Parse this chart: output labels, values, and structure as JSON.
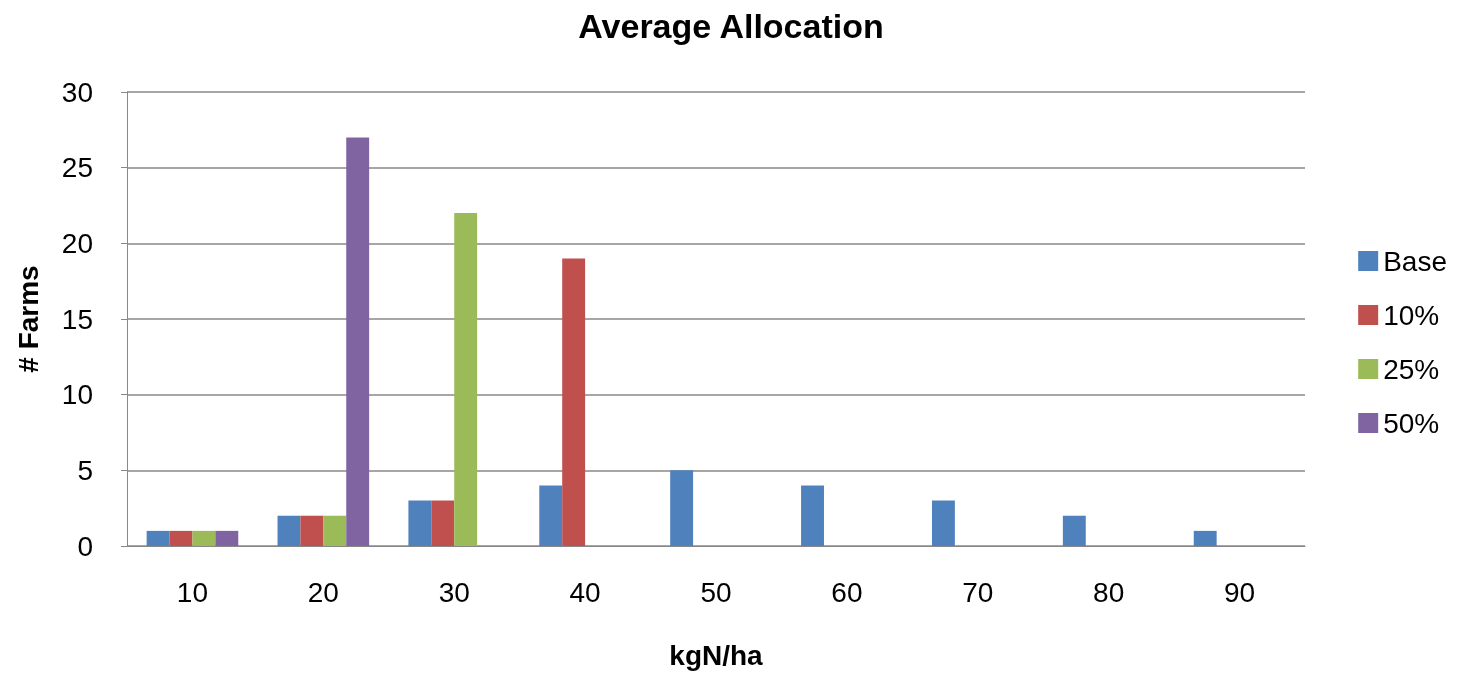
{
  "chart_data": {
    "type": "bar",
    "title": "Average Allocation",
    "xlabel": "kgN/ha",
    "ylabel": "# Farms",
    "categories": [
      "10",
      "20",
      "30",
      "40",
      "50",
      "60",
      "70",
      "80",
      "90"
    ],
    "series": [
      {
        "name": "Base",
        "color": "#4f81bd",
        "values": [
          1,
          2,
          3,
          4,
          5,
          4,
          3,
          2,
          1
        ]
      },
      {
        "name": "10%",
        "color": "#c0504d",
        "values": [
          1,
          2,
          3,
          19,
          0,
          0,
          0,
          0,
          0
        ]
      },
      {
        "name": "25%",
        "color": "#9bbb59",
        "values": [
          1,
          2,
          22,
          0,
          0,
          0,
          0,
          0,
          0
        ]
      },
      {
        "name": "50%",
        "color": "#8064a2",
        "values": [
          1,
          27,
          0,
          0,
          0,
          0,
          0,
          0,
          0
        ]
      }
    ],
    "ylim": [
      0,
      30
    ],
    "yticks": [
      0,
      5,
      10,
      15,
      20,
      25,
      30
    ],
    "grid": "y",
    "legend": "right"
  }
}
